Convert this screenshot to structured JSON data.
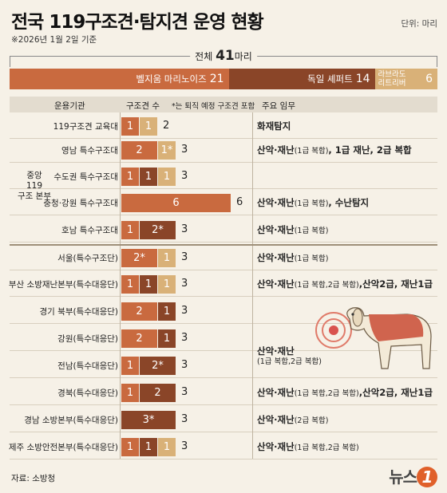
{
  "title": "전국 119구조견·탐지견 운영 현황",
  "unit": "단위: 마리",
  "basis": "※2026년 1월 2일 기준",
  "total": {
    "prefix": "전체",
    "value": "41",
    "suffix": "마리"
  },
  "colors": {
    "malinois": "#c96a3f",
    "shepherd": "#8a4528",
    "labrador": "#d9b178",
    "bg": "#f6f1e7"
  },
  "header": {
    "org": "운용기관",
    "count": "구조견 수",
    "note": "*는 퇴직 예정 구조견 포함",
    "duty": "주요 임무"
  },
  "group_label": [
    "중앙",
    "119",
    "구조 본부"
  ],
  "source": "자료: 소방청",
  "logo": {
    "text": "뉴스",
    "mark": "1"
  },
  "chart_data": {
    "type": "bar",
    "breeds": [
      {
        "name": "벨지움 마리노이즈",
        "value": 21,
        "color": "#c96a3f"
      },
      {
        "name": "독일 셰퍼트",
        "value": 14,
        "color": "#8a4528"
      },
      {
        "name": "라브라도 리트리버",
        "value": 6,
        "color": "#d9b178"
      }
    ],
    "rows": [
      {
        "org": "119구조견 교육대",
        "segs": [
          {
            "b": "m",
            "v": "1"
          },
          {
            "b": "l",
            "v": "1"
          }
        ],
        "total": "2",
        "duty": "화재탐지",
        "duty_small": "",
        "duty_tail": ""
      },
      {
        "org": "영남 특수구조대",
        "segs": [
          {
            "b": "m",
            "v": "2"
          },
          {
            "b": "l",
            "v": "1*"
          }
        ],
        "total": "3",
        "duty": "산악·재난",
        "duty_small": "(1급 복합)",
        "duty_tail": ", 1급 재난, 2급 복합"
      },
      {
        "org": "수도권 특수구조대",
        "segs": [
          {
            "b": "m",
            "v": "1"
          },
          {
            "b": "s",
            "v": "1"
          },
          {
            "b": "l",
            "v": "1"
          }
        ],
        "total": "3",
        "duty": "",
        "duty_small": "",
        "duty_tail": ""
      },
      {
        "org": "충청·강원 특수구조대",
        "segs": [
          {
            "b": "m",
            "v": "6"
          }
        ],
        "total": "6",
        "duty": "산악·재난",
        "duty_small": "(1급 복합)",
        "duty_tail": ", 수난탐지"
      },
      {
        "org": "호남 특수구조대",
        "segs": [
          {
            "b": "m",
            "v": "1"
          },
          {
            "b": "s",
            "v": "2*"
          }
        ],
        "total": "3",
        "duty": "산악·재난",
        "duty_small": "(1급 복합)",
        "duty_tail": ""
      },
      {
        "org": "서울(특수구조단)",
        "segs": [
          {
            "b": "m",
            "v": "2*"
          },
          {
            "b": "l",
            "v": "1"
          }
        ],
        "total": "3",
        "duty": "산악·재난",
        "duty_small": "(1급 복합)",
        "duty_tail": ""
      },
      {
        "org": "부산 소방재난본부(특수대응단)",
        "segs": [
          {
            "b": "m",
            "v": "1"
          },
          {
            "b": "s",
            "v": "1"
          },
          {
            "b": "l",
            "v": "1"
          }
        ],
        "total": "3",
        "duty": "산악·재난",
        "duty_small": "(1급 복합,2급 복합)",
        "duty_tail": ",산악2급, 재난1급"
      },
      {
        "org": "경기 북부(특수대응단)",
        "segs": [
          {
            "b": "m",
            "v": "2"
          },
          {
            "b": "s",
            "v": "1"
          }
        ],
        "total": "3",
        "duty": "",
        "duty_small": "",
        "duty_tail": ""
      },
      {
        "org": "강원(특수대응단)",
        "segs": [
          {
            "b": "m",
            "v": "2"
          },
          {
            "b": "s",
            "v": "1"
          }
        ],
        "total": "3",
        "duty": "",
        "duty_small": "",
        "duty_tail": ""
      },
      {
        "org": "전남(특수대응단)",
        "segs": [
          {
            "b": "m",
            "v": "1"
          },
          {
            "b": "s",
            "v": "2*"
          }
        ],
        "total": "3",
        "duty": "",
        "duty_small": "",
        "duty_tail": ""
      },
      {
        "org": "경북(특수대응단)",
        "segs": [
          {
            "b": "m",
            "v": "1"
          },
          {
            "b": "s",
            "v": "2"
          }
        ],
        "total": "3",
        "duty": "산악·재난",
        "duty_small": "(1급 복합,2급 복합)",
        "duty_tail": ",산악2급, 재난1급"
      },
      {
        "org": "경남 소방본부(특수대응단)",
        "segs": [
          {
            "b": "s",
            "v": "3*"
          }
        ],
        "total": "3",
        "duty": "산악·재난",
        "duty_small": "(2급 복합)",
        "duty_tail": ""
      },
      {
        "org": "제주 소방안전본부(특수대응단)",
        "segs": [
          {
            "b": "m",
            "v": "1"
          },
          {
            "b": "s",
            "v": "1"
          },
          {
            "b": "l",
            "v": "1"
          }
        ],
        "total": "3",
        "duty": "산악·재난",
        "duty_small": "(1급 복합,2급 복합)",
        "duty_tail": ""
      }
    ],
    "shared_duties": [
      {
        "text": "산악·재난",
        "small": "(1급 복합), 1급 재난, 2급 복합",
        "rows": [
          1,
          2
        ]
      },
      {
        "text": "산악·재난",
        "small": "(1급 복합,2급 복합)",
        "rows": [
          7,
          8,
          9
        ]
      }
    ]
  }
}
